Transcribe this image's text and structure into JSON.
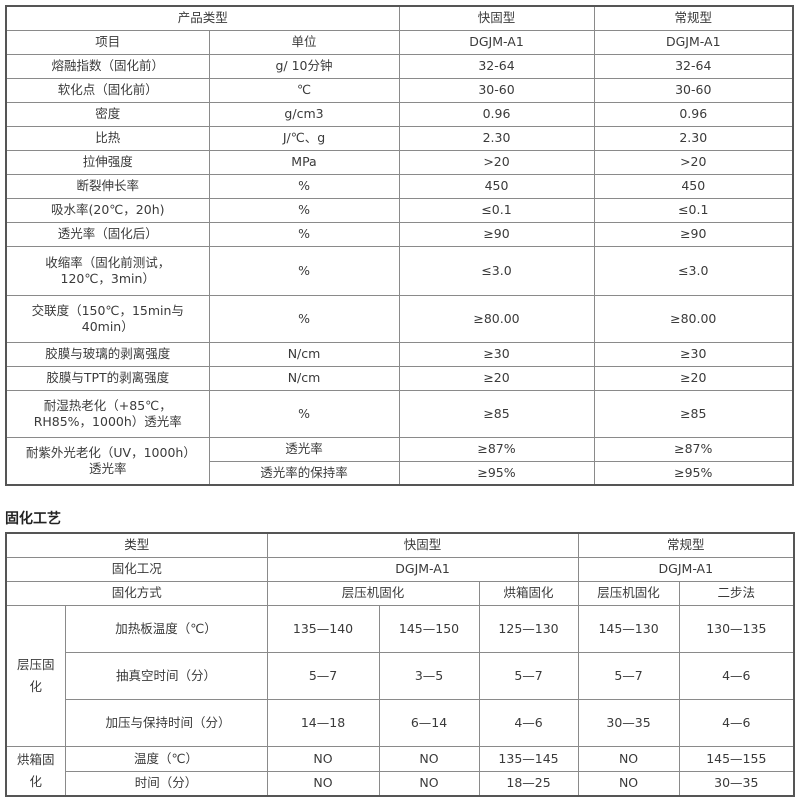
{
  "spec_table": {
    "header": {
      "product_type": "产品类型",
      "fast": "快固型",
      "normal": "常规型"
    },
    "subheader": {
      "item": "项目",
      "unit": "单位",
      "fast_model": "DGJM-A1",
      "normal_model": "DGJM-A1"
    },
    "rows": [
      [
        "熔融指数（固化前）",
        "g/ 10分钟",
        "32-64",
        "32-64"
      ],
      [
        "软化点（固化前）",
        "℃",
        "30-60",
        "30-60"
      ],
      [
        "密度",
        "g/cm3",
        "0.96",
        "0.96"
      ],
      [
        "比热",
        "J/℃、g",
        "2.30",
        "2.30"
      ],
      [
        "拉伸强度",
        "MPa",
        ">20",
        ">20"
      ],
      [
        "断裂伸长率",
        "%",
        "450",
        "450"
      ],
      [
        "吸水率(20℃，20h)",
        "%",
        "≤0.1",
        "≤0.1"
      ],
      [
        "透光率（固化后）",
        "%",
        "≥90",
        "≥90"
      ],
      [
        "收缩率（固化前测试，120℃，3min）",
        "%",
        "≤3.0",
        "≤3.0"
      ],
      [
        "交联度（150℃，15min与40min）",
        "%",
        "≥80.00",
        "≥80.00"
      ],
      [
        "胶膜与玻璃的剥离强度",
        "N/cm",
        "≥30",
        "≥30"
      ],
      [
        "胶膜与TPT的剥离强度",
        "N/cm",
        "≥20",
        "≥20"
      ],
      [
        "耐湿热老化（+85℃，RH85%，1000h）透光率",
        "%",
        "≥85",
        "≥85"
      ]
    ],
    "uv_row": {
      "item": "耐紫外光老化（UV，1000h）透光率",
      "sub": [
        [
          "透光率",
          "≥87%",
          "≥87%"
        ],
        [
          "透光率的保持率",
          "≥95%",
          "≥95%"
        ]
      ]
    }
  },
  "curing": {
    "title": "固化工艺",
    "type_label": "类型",
    "fast": "快固型",
    "normal": "常规型",
    "condition_label": "固化工况",
    "fast_model": "DGJM-A1",
    "normal_model": "DGJM-A1",
    "method_label": "固化方式",
    "methods": [
      "层压机固化",
      "烘箱固化",
      "层压机固化",
      "二步法"
    ],
    "laminator_group": "层压固化",
    "oven_group": "烘箱固化",
    "rows": [
      {
        "label": "加热板温度（℃）",
        "values": [
          "135—140",
          "145—150",
          "125—130",
          "145—130",
          "130—135"
        ]
      },
      {
        "label": "抽真空时间（分）",
        "values": [
          "5—7",
          "3—5",
          "5—7",
          "5—7",
          "4—6"
        ]
      },
      {
        "label": "加压与保持时间（分）",
        "values": [
          "14—18",
          "6—14",
          "4—6",
          "30—35",
          "4—6"
        ]
      },
      {
        "label": "温度（℃）",
        "values": [
          "NO",
          "NO",
          "135—145",
          "NO",
          "145—155"
        ]
      },
      {
        "label": "时间（分）",
        "values": [
          "NO",
          "NO",
          "18—25",
          "NO",
          "30—35"
        ]
      }
    ]
  }
}
